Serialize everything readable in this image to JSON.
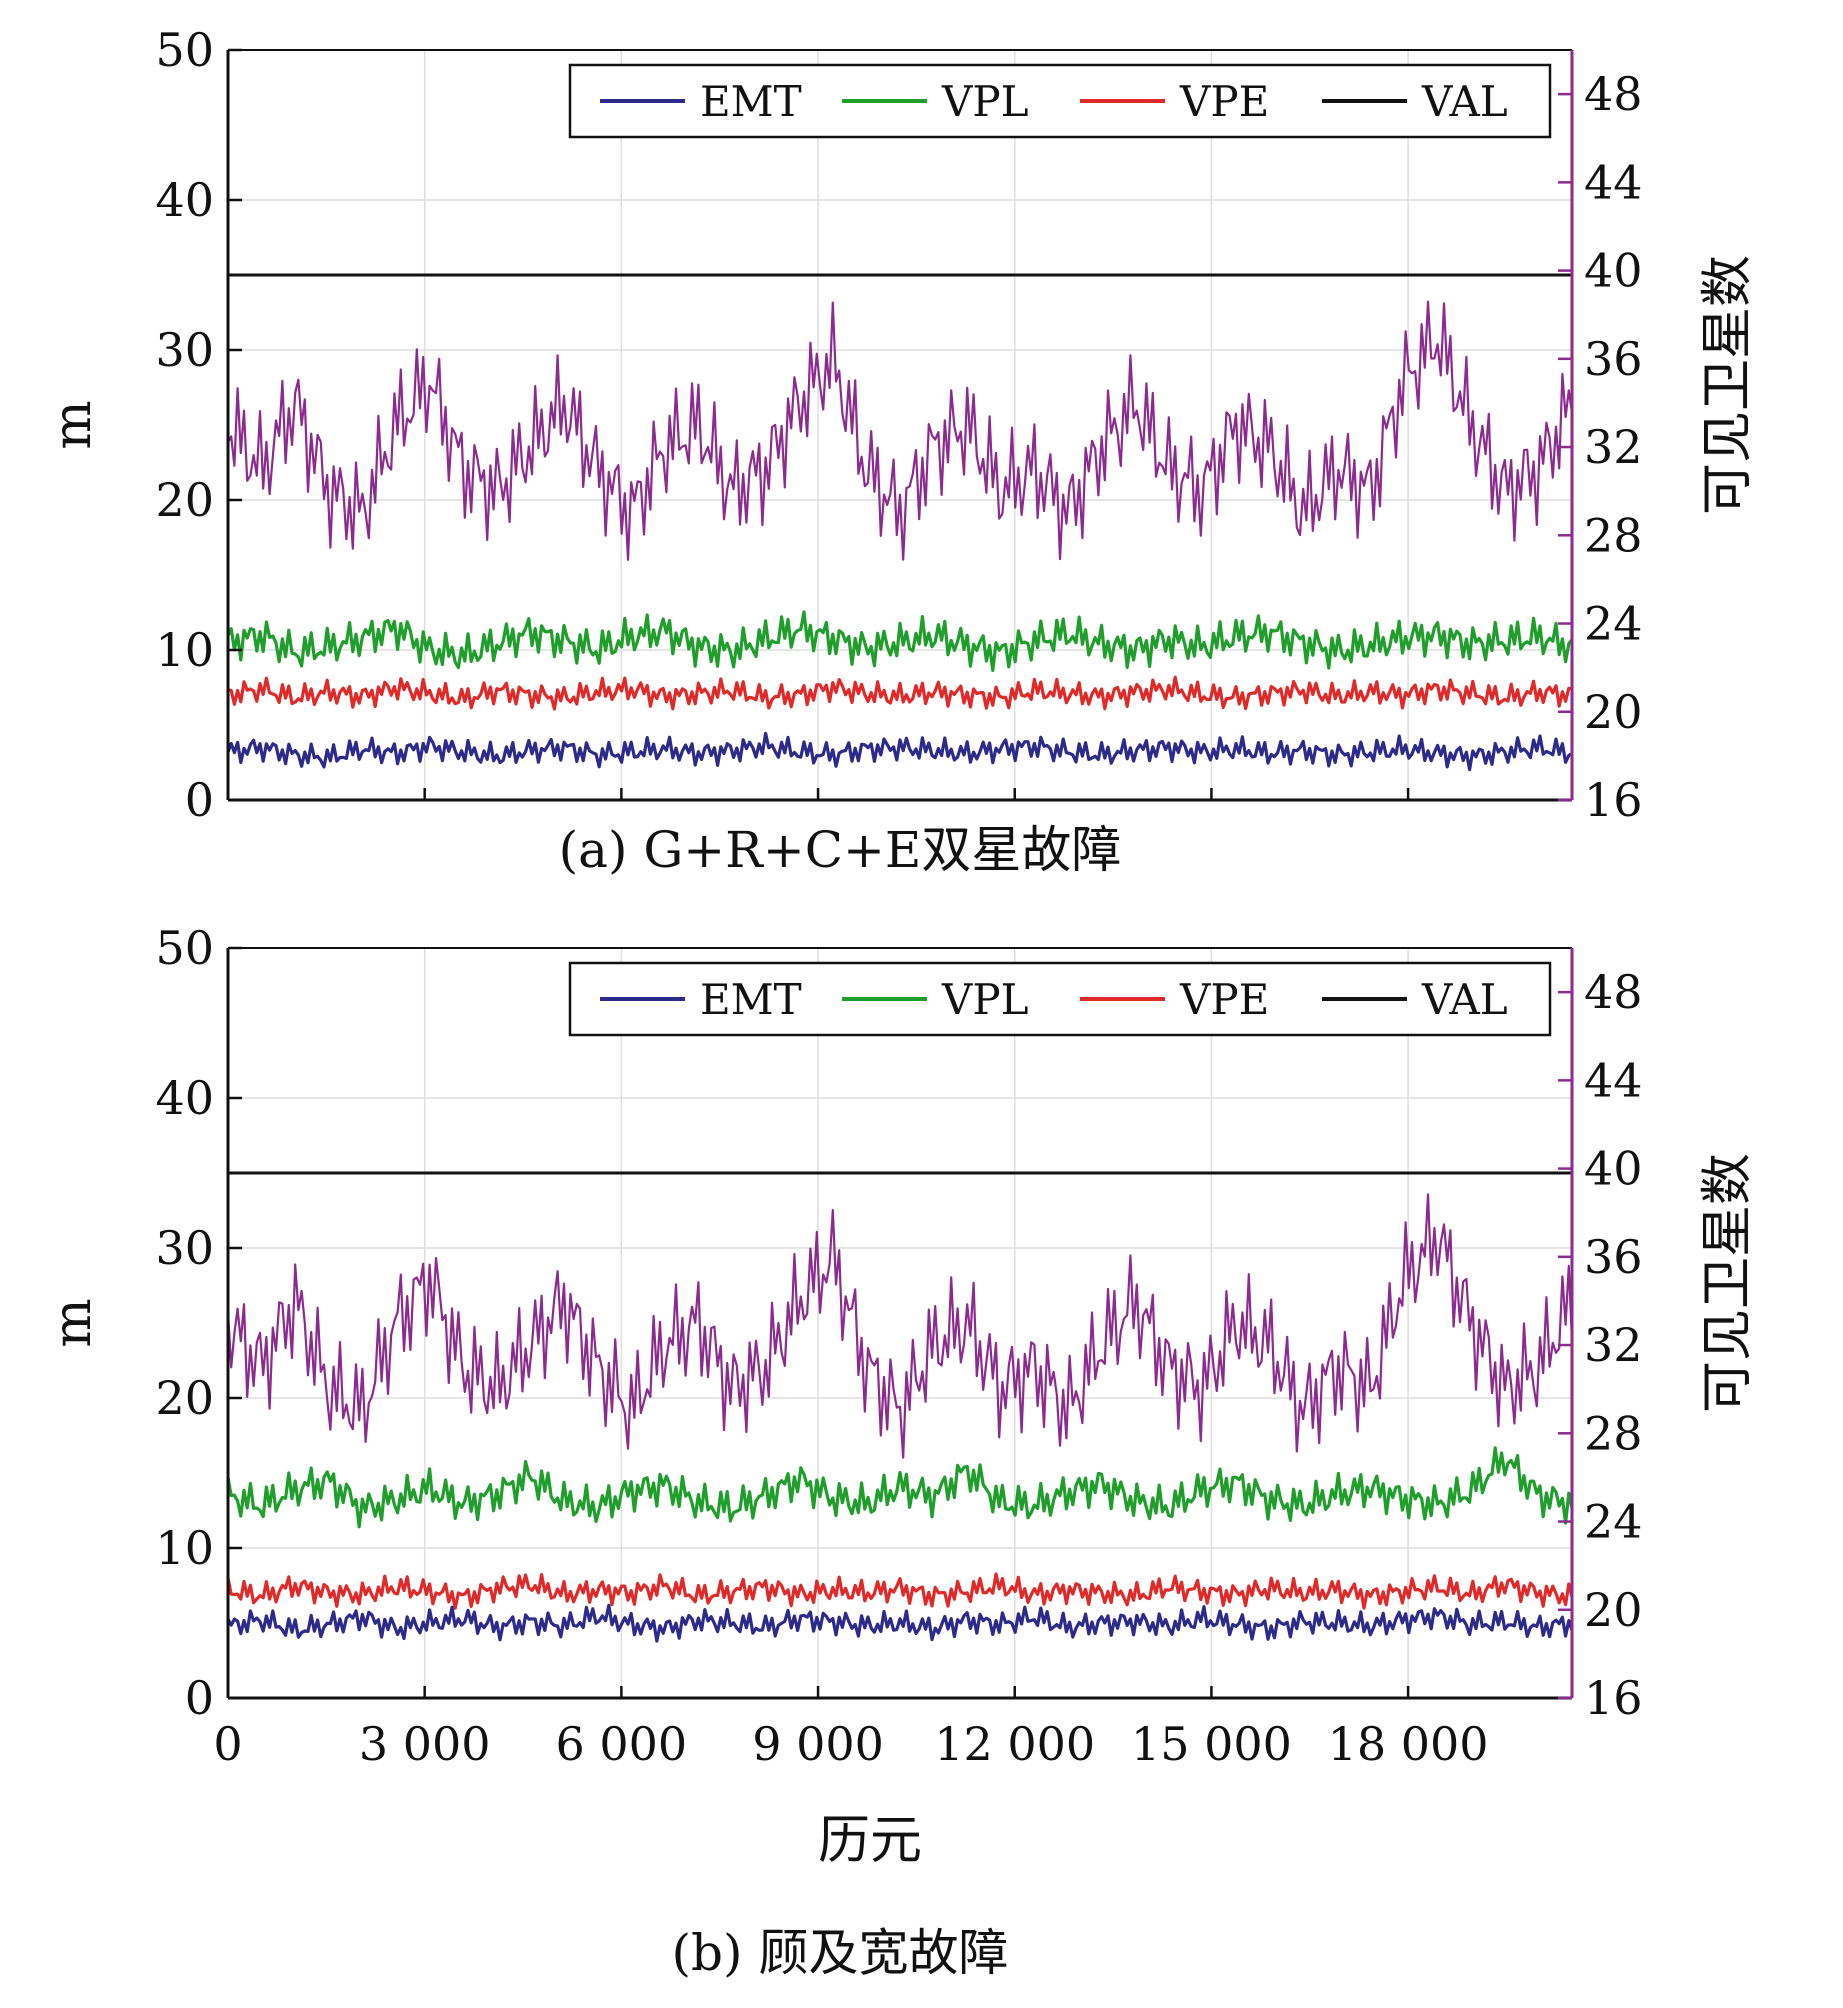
{
  "chart_data": [
    {
      "type": "line",
      "caption": "(a) G+R+C+E双星故障",
      "ylabel": "m",
      "y2label": "可见卫星数",
      "xlabel": "",
      "xlim": [
        0,
        20500
      ],
      "ylim": [
        0,
        50
      ],
      "y2lim": [
        16,
        50
      ],
      "yticks": [
        0,
        10,
        20,
        30,
        40,
        50
      ],
      "y2ticks": [
        16,
        20,
        24,
        28,
        32,
        36,
        40,
        44,
        48
      ],
      "xticks": [
        0,
        3000,
        6000,
        9000,
        12000,
        15000,
        18000
      ],
      "xtick_labels": [],
      "legend": [
        "EMT",
        "VPL",
        "VPE",
        "VAL"
      ],
      "legend_position": "top-right",
      "grid": true,
      "series": [
        {
          "name": "EMT",
          "axis": "left",
          "color": "#2e2a8c",
          "values": [
            3.2,
            3.5,
            3.0,
            2.8,
            3.4,
            3.1,
            3.6,
            3.2,
            2.9,
            3.3,
            3.5,
            3.0,
            3.2,
            3.4,
            3.1,
            3.3,
            3.6,
            3.2,
            3.0,
            3.4,
            3.5,
            3.3,
            3.1,
            3.4,
            3.6,
            3.2,
            3.0,
            3.3,
            3.5,
            3.2,
            3.4,
            3.1,
            3.3,
            3.0,
            3.2,
            3.4,
            3.1,
            2.9,
            3.2,
            3.5,
            3.1
          ]
        },
        {
          "name": "VPL",
          "axis": "left",
          "color": "#1f9e2c",
          "values": [
            10.5,
            11.0,
            9.8,
            10.2,
            10.8,
            11.5,
            10.0,
            9.6,
            10.4,
            11.2,
            10.6,
            10.0,
            10.9,
            11.3,
            10.2,
            9.9,
            10.7,
            11.4,
            10.8,
            10.1,
            10.5,
            11.0,
            10.3,
            9.8,
            10.6,
            11.1,
            10.4,
            10.0,
            10.7,
            10.2,
            10.9,
            11.2,
            10.5,
            9.9,
            10.3,
            10.8,
            11.0,
            10.4,
            10.6,
            10.9,
            10.2
          ]
        },
        {
          "name": "VPE",
          "axis": "left",
          "color": "#e02a2a",
          "values": [
            7.0,
            7.4,
            6.8,
            7.2,
            6.9,
            7.5,
            7.1,
            6.7,
            7.3,
            7.0,
            6.8,
            7.2,
            7.4,
            6.9,
            7.1,
            7.3,
            6.8,
            7.0,
            7.5,
            7.1,
            6.9,
            7.2,
            7.0,
            6.8,
            7.3,
            7.1,
            6.9,
            7.2,
            7.4,
            7.0,
            6.8,
            7.1,
            7.3,
            6.9,
            7.2,
            7.0,
            7.4,
            7.1,
            6.8,
            7.2,
            7.0
          ]
        },
        {
          "name": "VAL",
          "axis": "left",
          "color": "#111111",
          "values": [
            35,
            35
          ]
        },
        {
          "name": "可见卫星数",
          "axis": "right",
          "color": "#8b2a8f",
          "values": [
            33,
            31,
            34,
            30,
            29,
            33,
            35,
            31,
            30,
            32,
            34,
            31,
            29,
            32,
            33,
            30,
            31,
            34,
            36,
            31,
            29,
            32,
            33,
            30,
            31,
            29,
            32,
            34,
            31,
            30,
            33,
            32,
            29,
            31,
            30,
            35,
            37,
            33,
            30,
            31,
            34
          ]
        }
      ]
    },
    {
      "type": "line",
      "caption": "(b) 顾及宽故障",
      "ylabel": "m",
      "y2label": "可见卫星数",
      "xlabel": "历元",
      "xlim": [
        0,
        20500
      ],
      "ylim": [
        0,
        50
      ],
      "y2lim": [
        16,
        50
      ],
      "yticks": [
        0,
        10,
        20,
        30,
        40,
        50
      ],
      "y2ticks": [
        16,
        20,
        24,
        28,
        32,
        36,
        40,
        44,
        48
      ],
      "xticks": [
        0,
        3000,
        6000,
        9000,
        12000,
        15000,
        18000
      ],
      "xtick_labels": [
        "0",
        "3 000",
        "6 000",
        "9 000",
        "12 000",
        "15 000",
        "18 000"
      ],
      "legend": [
        "EMT",
        "VPL",
        "VPE",
        "VAL"
      ],
      "legend_position": "top-right",
      "grid": true,
      "series": [
        {
          "name": "EMT",
          "axis": "left",
          "color": "#2e2a8c",
          "values": [
            4.8,
            5.2,
            4.5,
            4.9,
            5.4,
            4.6,
            5.0,
            5.3,
            4.7,
            5.1,
            4.8,
            5.5,
            4.9,
            4.6,
            5.2,
            5.0,
            4.7,
            5.3,
            5.1,
            4.8,
            5.0,
            4.6,
            5.2,
            4.9,
            5.4,
            4.7,
            5.0,
            5.1,
            4.8,
            5.3,
            4.9,
            4.6,
            5.1,
            5.0,
            4.8,
            5.2,
            5.5,
            4.9,
            5.1,
            4.7,
            5.0
          ]
        },
        {
          "name": "VPL",
          "axis": "left",
          "color": "#1f9e2c",
          "values": [
            13.5,
            12.8,
            13.9,
            14.5,
            12.6,
            13.2,
            14.0,
            12.9,
            13.6,
            14.8,
            13.1,
            12.7,
            13.8,
            14.2,
            13.0,
            12.6,
            13.5,
            14.6,
            13.3,
            12.9,
            14.1,
            13.4,
            15.2,
            13.0,
            12.8,
            13.7,
            14.3,
            13.1,
            12.7,
            13.9,
            14.4,
            13.2,
            12.8,
            13.6,
            14.0,
            13.3,
            12.9,
            13.8,
            16.0,
            13.5,
            12.9
          ]
        },
        {
          "name": "VPE",
          "axis": "left",
          "color": "#e02a2a",
          "values": [
            7.2,
            6.8,
            7.5,
            7.0,
            6.9,
            7.4,
            7.1,
            6.7,
            7.3,
            7.6,
            6.9,
            7.2,
            7.0,
            7.5,
            6.8,
            7.1,
            7.4,
            6.9,
            7.2,
            7.0,
            7.3,
            6.8,
            7.1,
            7.5,
            6.9,
            7.2,
            7.0,
            6.8,
            7.4,
            7.1,
            6.9,
            7.3,
            7.0,
            7.2,
            6.8,
            7.1,
            7.4,
            6.9,
            7.6,
            7.0,
            6.8
          ]
        },
        {
          "name": "VAL",
          "axis": "left",
          "color": "#111111",
          "values": [
            35,
            35
          ]
        },
        {
          "name": "可见卫星数",
          "axis": "right",
          "color": "#8b2a8f",
          "values": [
            33,
            31,
            34,
            30,
            29,
            33,
            35,
            31,
            30,
            32,
            34,
            31,
            29,
            32,
            33,
            30,
            31,
            34,
            36,
            31,
            29,
            32,
            33,
            30,
            31,
            29,
            32,
            34,
            31,
            30,
            33,
            32,
            29,
            31,
            30,
            35,
            37,
            33,
            30,
            31,
            34
          ]
        }
      ]
    }
  ]
}
